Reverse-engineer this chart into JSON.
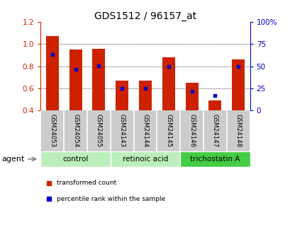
{
  "title": "GDS1512 / 96157_at",
  "samples": [
    "GSM24053",
    "GSM24054",
    "GSM24055",
    "GSM24143",
    "GSM24144",
    "GSM24145",
    "GSM24146",
    "GSM24147",
    "GSM24148"
  ],
  "red_values": [
    1.07,
    0.95,
    0.96,
    0.67,
    0.67,
    0.88,
    0.65,
    0.49,
    0.86
  ],
  "blue_values": [
    63,
    47,
    51,
    25,
    25,
    50,
    22,
    17,
    50
  ],
  "ylim_left": [
    0.4,
    1.2
  ],
  "ylim_right": [
    0,
    100
  ],
  "yticks_left": [
    0.4,
    0.6,
    0.8,
    1.0,
    1.2
  ],
  "yticks_right": [
    0,
    25,
    50,
    75,
    100
  ],
  "ytick_labels_right": [
    "0",
    "25",
    "50",
    "75",
    "100%"
  ],
  "bar_color": "#cc2200",
  "dot_color": "#0000cc",
  "bar_bottom": 0.4,
  "agent_label": "agent",
  "legend_red": "transformed count",
  "legend_blue": "percentile rank within the sample",
  "background_color": "#ffffff",
  "tick_color_left": "#cc2200",
  "tick_color_right": "#0000cc",
  "sample_bg": "#cccccc",
  "sample_divider": "#ffffff",
  "group_light_color": "#bbeebb",
  "group_dark_color": "#44cc44",
  "groups": [
    {
      "label": "control",
      "start": 0,
      "end": 2,
      "dark": false
    },
    {
      "label": "retinoic acid",
      "start": 3,
      "end": 5,
      "dark": false
    },
    {
      "label": "trichostatin A",
      "start": 6,
      "end": 8,
      "dark": true
    }
  ]
}
